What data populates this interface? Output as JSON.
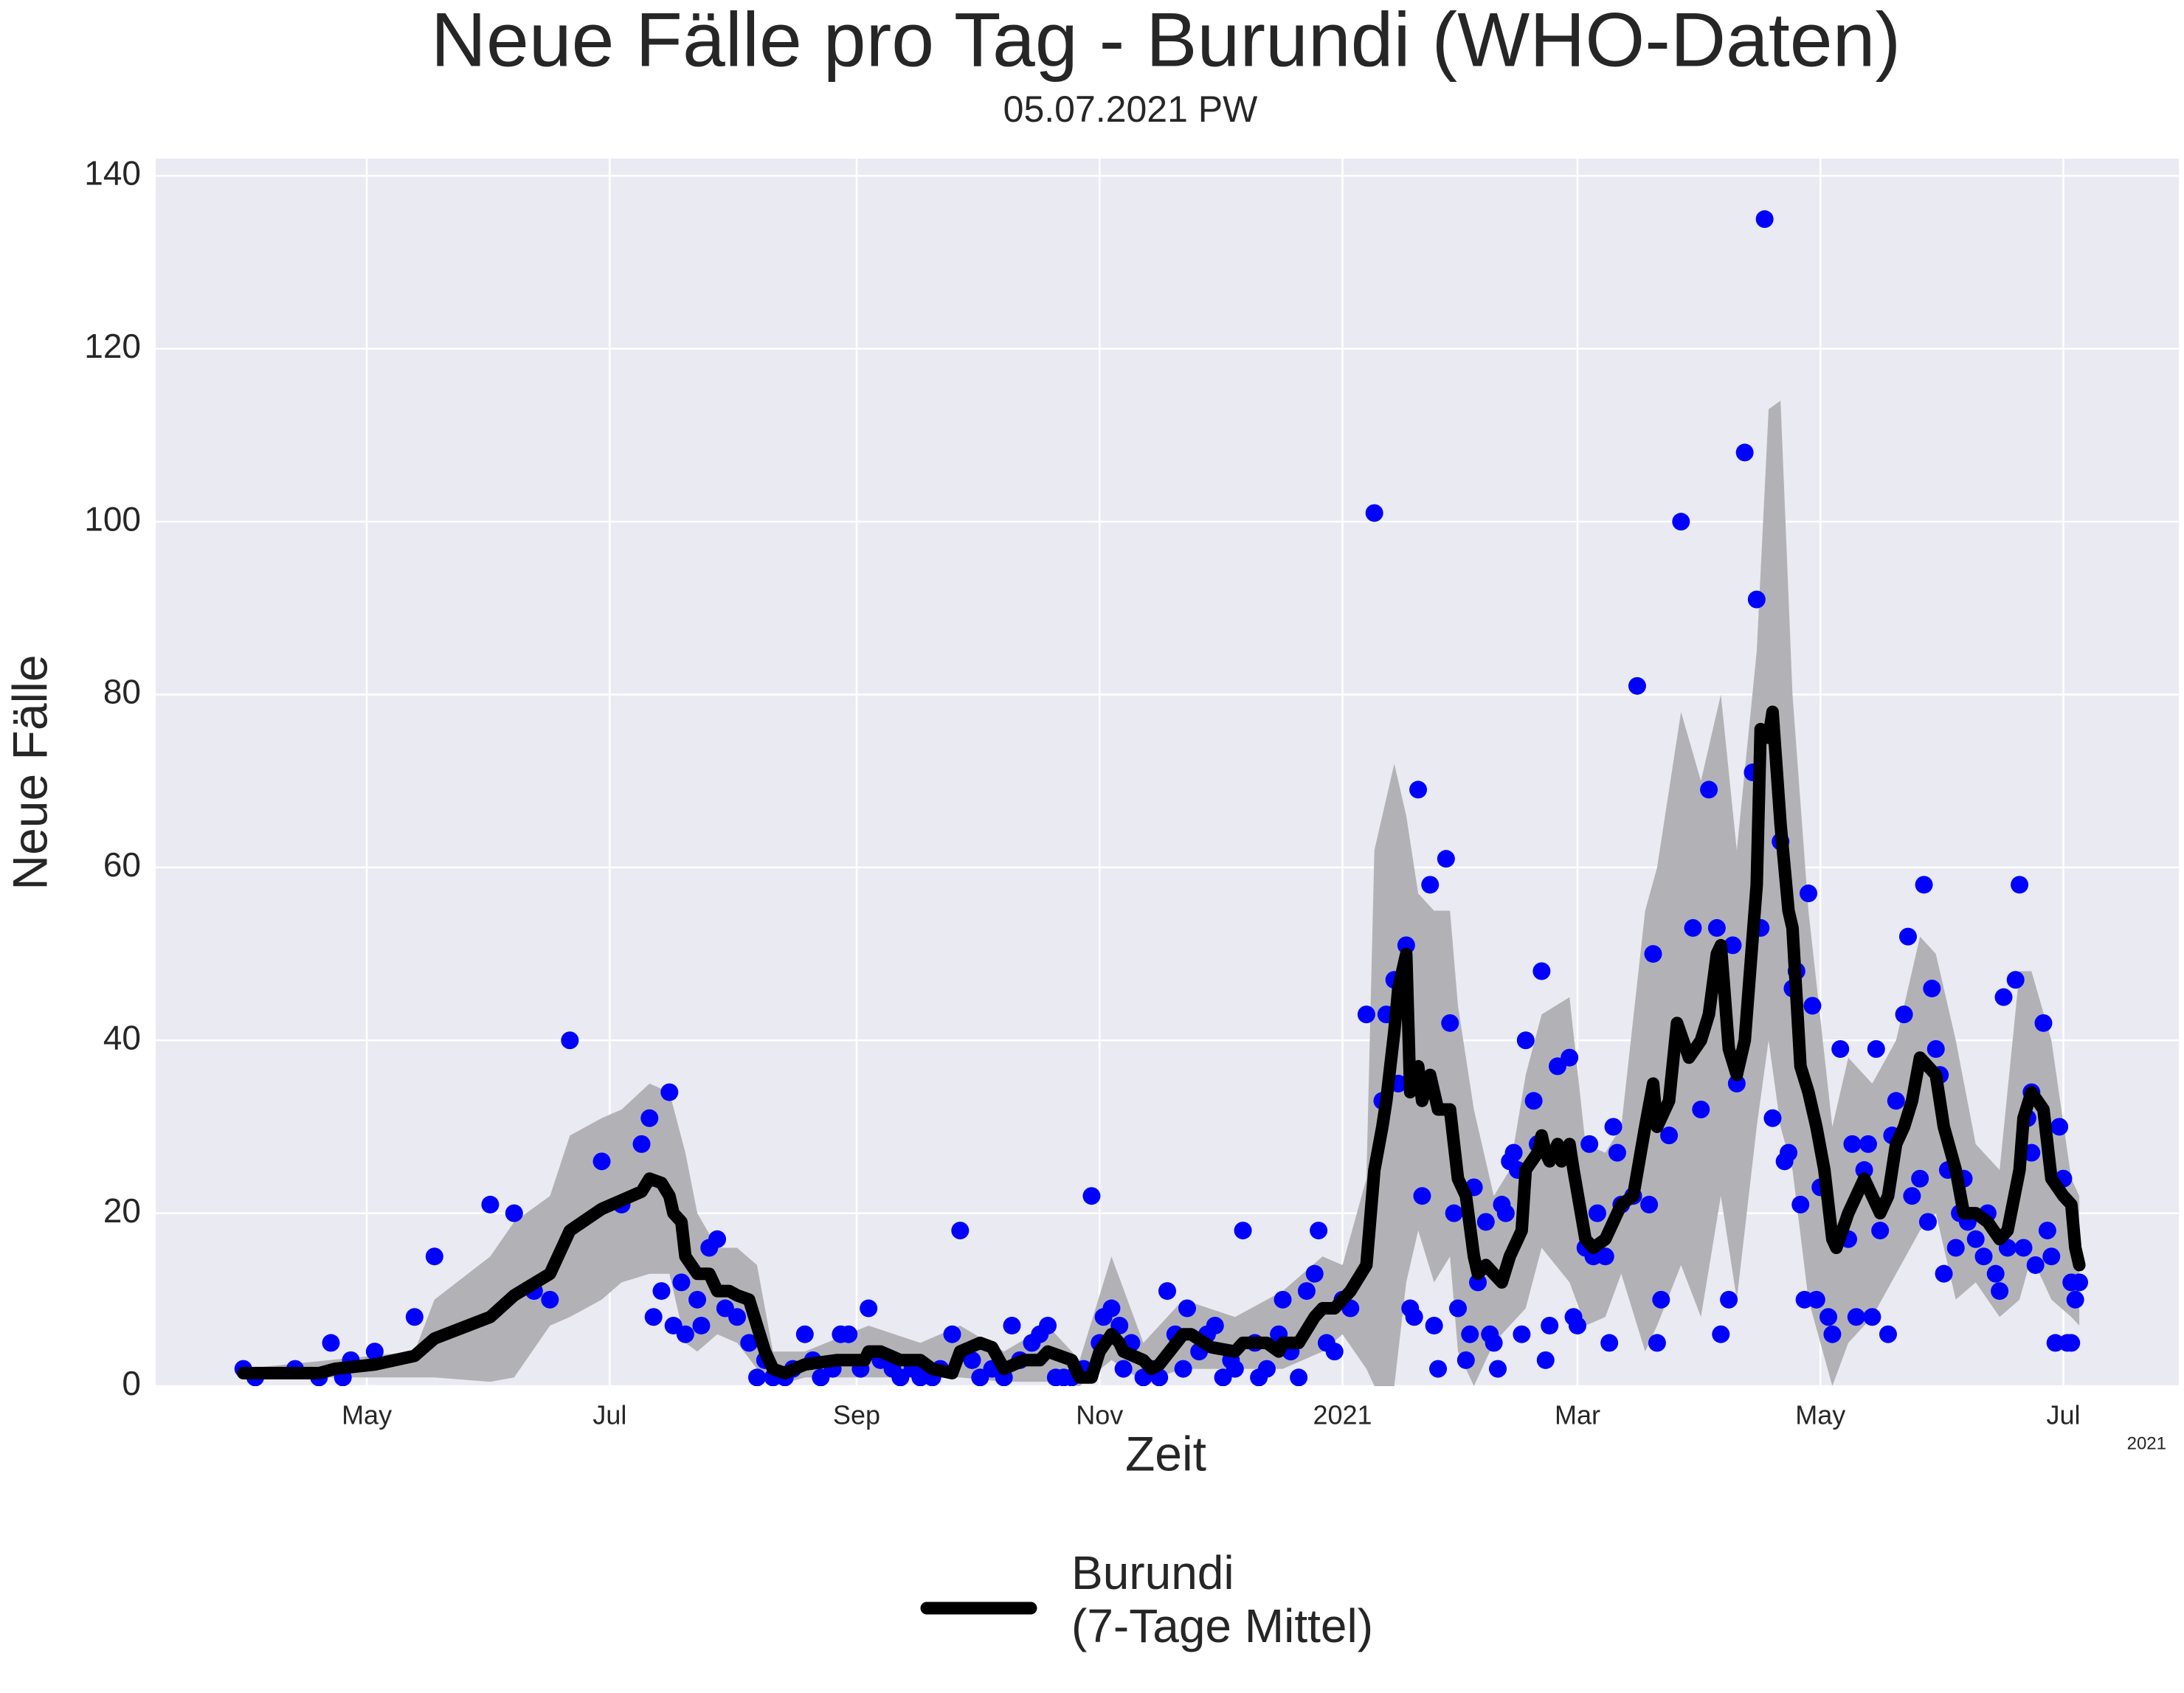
{
  "chart_data": {
    "type": "line",
    "title": "Neue Fälle pro Tag - Burundi (WHO-Daten)",
    "subtitle": "05.07.2021 PW",
    "x_label": "Zeit",
    "y_label": "Neue Fälle",
    "x_offset_label": "2021",
    "xlim": [
      68,
      576
    ],
    "ylim": [
      0,
      142
    ],
    "yticks": [
      0,
      20,
      40,
      60,
      80,
      100,
      120,
      140
    ],
    "xticks": [
      {
        "value": 121,
        "label": "May"
      },
      {
        "value": 182,
        "label": "Jul"
      },
      {
        "value": 244,
        "label": "Sep"
      },
      {
        "value": 305,
        "label": "Nov"
      },
      {
        "value": 366,
        "label": "2021"
      },
      {
        "value": 425,
        "label": "Mar"
      },
      {
        "value": 486,
        "label": "May"
      },
      {
        "value": 547,
        "label": "Jul"
      }
    ],
    "grid": true,
    "legend": "bottom",
    "band": {
      "color": "#b2b2b6",
      "x": [
        90,
        133,
        138,
        152,
        158,
        167,
        172,
        180,
        185,
        192,
        197,
        201,
        204,
        209,
        214,
        219,
        223,
        231,
        247,
        260,
        270,
        281,
        292,
        300,
        308,
        316,
        326,
        339,
        351,
        361,
        366,
        372,
        374,
        379,
        382,
        385,
        389,
        393,
        395,
        399,
        404,
        408,
        412,
        416,
        423,
        427,
        432,
        436,
        442,
        445,
        451,
        456,
        461,
        465,
        470,
        473,
        476,
        479,
        483,
        489,
        493,
        499,
        505,
        511,
        515,
        520,
        525,
        531,
        536,
        539,
        544,
        549,
        551
      ],
      "lower": [
        1,
        1,
        1,
        0.5,
        1,
        7,
        8,
        10,
        12,
        13,
        13,
        5,
        4,
        6,
        5,
        2,
        0,
        1,
        1,
        1,
        1,
        0.5,
        0.5,
        0,
        3,
        0.5,
        2,
        2,
        2,
        4,
        6,
        2,
        0,
        0,
        12,
        18,
        12,
        15,
        4,
        0,
        5,
        7,
        9,
        16,
        12,
        7,
        8,
        13,
        4,
        7,
        14,
        8,
        22,
        10,
        30,
        40,
        30,
        25,
        10,
        0,
        5,
        8,
        13,
        18,
        20,
        10,
        12,
        8,
        10,
        15,
        10,
        8,
        7
      ],
      "upper": [
        2,
        4,
        10,
        15,
        19,
        22,
        29,
        31,
        32,
        35,
        34,
        27,
        20,
        16,
        16,
        14,
        4,
        4,
        7,
        5,
        7,
        4,
        7,
        3,
        15,
        5,
        10,
        8,
        11,
        15,
        14,
        24,
        62,
        72,
        66,
        57,
        55,
        55,
        44,
        32,
        22,
        25,
        36,
        43,
        45,
        28,
        27,
        30,
        55,
        60,
        78,
        70,
        80,
        62,
        85,
        113,
        114,
        80,
        55,
        30,
        38,
        35,
        40,
        52,
        50,
        40,
        28,
        25,
        48,
        48,
        40,
        24,
        22
      ]
    },
    "series": [
      {
        "name": "Burundi\n(7-Tage Mittel)",
        "color": "#000000",
        "x": [
          90,
          109,
          113,
          123,
          133,
          138,
          152,
          158,
          167,
          172,
          180,
          185,
          190,
          192,
          195,
          197,
          198,
          200,
          201,
          204,
          207,
          209,
          212,
          214,
          217,
          219,
          221,
          223,
          226,
          231,
          239,
          246,
          247,
          250,
          255,
          260,
          263,
          268,
          270,
          275,
          278,
          281,
          286,
          290,
          292,
          298,
          300,
          303,
          305,
          308,
          310,
          311,
          316,
          318,
          320,
          326,
          328,
          333,
          339,
          341,
          347,
          350,
          351,
          355,
          359,
          361,
          364,
          366,
          368,
          372,
          374,
          376,
          377,
          379,
          380,
          382,
          383,
          385,
          386,
          388,
          389,
          390,
          393,
          395,
          397,
          399,
          400,
          402,
          404,
          406,
          408,
          410,
          411,
          412,
          415,
          416,
          417,
          418,
          420,
          421,
          423,
          424,
          427,
          429,
          432,
          434,
          436,
          439,
          442,
          444,
          445,
          448,
          450,
          453,
          456,
          458,
          460,
          461,
          463,
          465,
          467,
          470,
          471,
          473,
          474,
          476,
          478,
          479,
          481,
          483,
          485,
          487,
          489,
          490,
          493,
          495,
          497,
          499,
          501,
          503,
          505,
          507,
          509,
          511,
          513,
          515,
          517,
          520,
          522,
          525,
          528,
          531,
          533,
          536,
          537,
          539,
          542,
          544,
          547,
          549,
          550,
          551
        ],
        "values": [
          1.5,
          1.5,
          2,
          2.5,
          3.5,
          5.5,
          8,
          10.5,
          13,
          18,
          20.5,
          21.5,
          22.5,
          24,
          23.5,
          22,
          20,
          19,
          15,
          13,
          13,
          11,
          11,
          10.5,
          10,
          7,
          4,
          2,
          1.5,
          2.5,
          3,
          3,
          4,
          4,
          3,
          3,
          2,
          1.5,
          4,
          5,
          4.5,
          2,
          3,
          3,
          4,
          3,
          1,
          1,
          4,
          6,
          5,
          4,
          3,
          2,
          2.5,
          6,
          6,
          4.5,
          4,
          5,
          5,
          4,
          5,
          5,
          8,
          9,
          9,
          10,
          11,
          14,
          25,
          30,
          33,
          41,
          46,
          50,
          34,
          37,
          33,
          36,
          34,
          32,
          32,
          24,
          22,
          15,
          13,
          14,
          13,
          12,
          15,
          17,
          18,
          25,
          27,
          29,
          27,
          26,
          28,
          26,
          28,
          25,
          17,
          16,
          17,
          19,
          21,
          22,
          30,
          35,
          30,
          33,
          42,
          38,
          40,
          43,
          50,
          51,
          39,
          36,
          40,
          58,
          76,
          75,
          78,
          65,
          55,
          53,
          37,
          34,
          30,
          25,
          17,
          16,
          20,
          22,
          24,
          22,
          20,
          22,
          28,
          30,
          33,
          38,
          37,
          36,
          30,
          25,
          20,
          20,
          19,
          17,
          18,
          25,
          31,
          34,
          32,
          24,
          22,
          21,
          16,
          14
        ]
      }
    ],
    "scatter": {
      "color": "#0000ff",
      "x": [
        90,
        93,
        103,
        109,
        112,
        115,
        117,
        123,
        133,
        138,
        152,
        158,
        163,
        167,
        172,
        180,
        185,
        190,
        192,
        193,
        195,
        197,
        198,
        200,
        201,
        204,
        205,
        207,
        209,
        211,
        214,
        217,
        219,
        221,
        223,
        226,
        228,
        231,
        233,
        235,
        238,
        240,
        242,
        245,
        247,
        250,
        253,
        255,
        258,
        260,
        263,
        265,
        268,
        270,
        273,
        275,
        278,
        281,
        283,
        285,
        288,
        290,
        292,
        294,
        296,
        298,
        301,
        303,
        305,
        306,
        308,
        310,
        311,
        313,
        316,
        318,
        320,
        322,
        324,
        326,
        327,
        330,
        332,
        334,
        336,
        338,
        339,
        341,
        344,
        345,
        347,
        350,
        351,
        353,
        355,
        357,
        359,
        360,
        362,
        364,
        366,
        368,
        372,
        374,
        376,
        377,
        379,
        380,
        382,
        383,
        384,
        385,
        386,
        388,
        389,
        390,
        392,
        393,
        394,
        395,
        397,
        398,
        399,
        400,
        402,
        403,
        404,
        405,
        406,
        407,
        408,
        409,
        410,
        411,
        412,
        414,
        415,
        416,
        417,
        418,
        420,
        421,
        423,
        424,
        425,
        427,
        428,
        429,
        430,
        432,
        433,
        434,
        435,
        436,
        439,
        440,
        443,
        444,
        445,
        446,
        448,
        451,
        454,
        456,
        458,
        460,
        461,
        463,
        464,
        465,
        467,
        469,
        470,
        471,
        472,
        474,
        476,
        477,
        478,
        479,
        480,
        481,
        482,
        483,
        484,
        485,
        486,
        488,
        489,
        490,
        491,
        493,
        494,
        495,
        497,
        498,
        499,
        500,
        501,
        503,
        504,
        505,
        507,
        508,
        509,
        511,
        512,
        513,
        514,
        515,
        516,
        517,
        518,
        520,
        521,
        522,
        523,
        525,
        527,
        528,
        530,
        531,
        532,
        533,
        535,
        536,
        537,
        538,
        539,
        539,
        540,
        542,
        543,
        544,
        545,
        546,
        547,
        548,
        549,
        549,
        550,
        551
      ],
      "values": [
        2,
        1,
        2,
        1,
        5,
        1,
        3,
        4,
        8,
        15,
        21,
        20,
        11,
        10,
        40,
        26,
        21,
        28,
        31,
        8,
        11,
        34,
        7,
        12,
        6,
        10,
        7,
        16,
        17,
        9,
        8,
        5,
        1,
        3,
        1,
        1,
        2,
        6,
        3,
        1,
        2,
        6,
        6,
        2,
        9,
        3,
        2,
        1,
        2,
        1,
        1,
        2,
        6,
        18,
        3,
        1,
        2,
        1,
        7,
        3,
        5,
        6,
        7,
        1,
        1,
        1,
        2,
        22,
        5,
        8,
        9,
        7,
        2,
        5,
        1,
        2,
        1,
        11,
        6,
        2,
        9,
        4,
        6,
        7,
        1,
        3,
        2,
        18,
        5,
        1,
        2,
        6,
        10,
        4,
        1,
        11,
        13,
        18,
        5,
        4,
        10,
        9,
        43,
        101,
        33,
        43,
        47,
        35,
        51,
        9,
        8,
        69,
        22,
        58,
        7,
        2,
        61,
        42,
        20,
        9,
        3,
        6,
        23,
        12,
        19,
        6,
        5,
        2,
        21,
        20,
        26,
        27,
        25,
        6,
        40,
        33,
        28,
        48,
        3,
        7,
        37,
        27,
        38,
        8,
        7,
        16,
        28,
        15,
        20,
        15,
        5,
        30,
        27,
        21,
        22,
        81,
        21,
        50,
        5,
        10,
        29,
        100,
        53,
        32,
        69,
        53,
        6,
        10,
        51,
        35,
        108,
        71,
        91,
        53,
        135,
        31,
        63,
        26,
        27,
        46,
        48,
        21,
        10,
        57,
        44,
        10,
        23,
        8,
        6,
        17,
        39,
        17,
        28,
        8,
        25,
        28,
        8,
        39,
        18,
        6,
        29,
        33,
        43,
        52,
        22,
        24,
        58,
        19,
        46,
        39,
        36,
        13,
        25,
        16,
        20,
        24,
        19,
        17,
        15,
        20,
        13,
        11,
        45,
        16,
        47,
        58,
        16,
        31,
        27,
        34,
        14,
        42,
        18,
        15,
        5,
        30,
        24,
        5,
        12,
        5,
        10,
        12
      ]
    }
  }
}
